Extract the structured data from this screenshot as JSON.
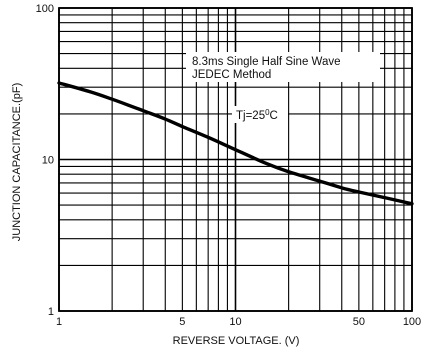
{
  "chart_data": {
    "type": "line",
    "x_scale": "log",
    "y_scale": "log",
    "xlim": [
      1,
      100
    ],
    "ylim": [
      1,
      100
    ],
    "xlabel": "REVERSE VOLTAGE. (V)",
    "ylabel": "JUNCTION CAPACITANCE.(pF)",
    "x_ticks": [
      {
        "value": 1,
        "label": "1"
      },
      {
        "value": 5,
        "label": "5"
      },
      {
        "value": 10,
        "label": "10"
      },
      {
        "value": 50,
        "label": "50"
      },
      {
        "value": 100,
        "label": "100"
      }
    ],
    "y_ticks": [
      {
        "value": 1,
        "label": "1"
      },
      {
        "value": 10,
        "label": "10"
      },
      {
        "value": 100,
        "label": "100"
      }
    ],
    "grid": true,
    "annotations": [
      {
        "line1": "8.3ms Single Half Sine Wave",
        "line2": "JEDEC Method"
      },
      {
        "text_main": "Tj=25",
        "text_sup": "0",
        "text_unit": "C"
      }
    ],
    "series": [
      {
        "x": [
          1,
          1.5,
          2,
          3,
          4,
          5,
          7,
          10,
          15,
          20,
          30,
          40,
          50,
          70,
          100
        ],
        "y": [
          32,
          28,
          25,
          21,
          18.5,
          16.5,
          14,
          11.6,
          9.4,
          8.3,
          7.2,
          6.5,
          6.1,
          5.6,
          5.1
        ]
      }
    ],
    "colors": {
      "line": "#000000",
      "grid": "#000000",
      "text": "#111111",
      "background": "#ffffff"
    }
  }
}
